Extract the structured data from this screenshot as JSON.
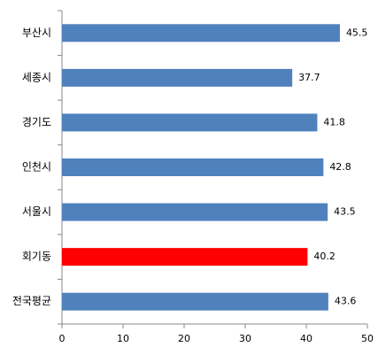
{
  "chart_data": {
    "type": "bar",
    "orientation": "horizontal",
    "categories": [
      "부산시",
      "세종시",
      "경기도",
      "인천시",
      "서울시",
      "회기동",
      "전국평균"
    ],
    "values": [
      45.5,
      37.7,
      41.8,
      42.8,
      43.5,
      40.2,
      43.6
    ],
    "colors": [
      "#4f81bd",
      "#4f81bd",
      "#4f81bd",
      "#4f81bd",
      "#4f81bd",
      "#ff0000",
      "#4f81bd"
    ],
    "xlim": [
      0,
      50
    ],
    "xticks": [
      0,
      10,
      20,
      30,
      40,
      50
    ],
    "grid": false
  }
}
